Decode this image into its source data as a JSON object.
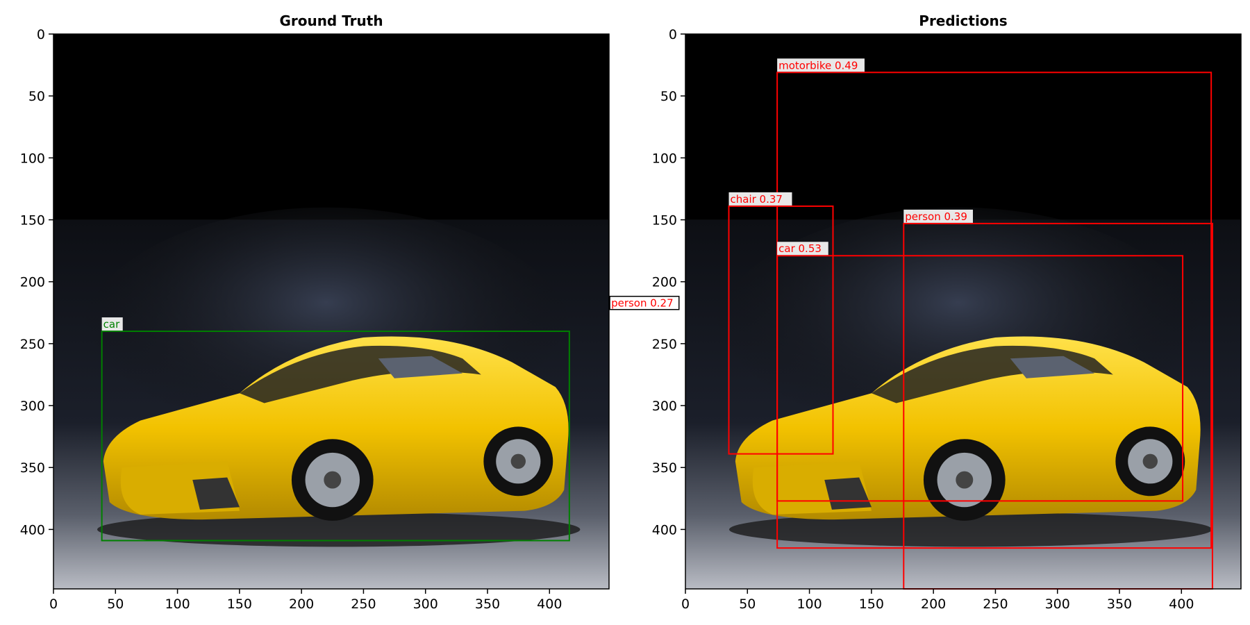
{
  "figure": {
    "image_description_colors": {
      "sky": "#000000",
      "car": "#f2c200",
      "gt_box": "#008000",
      "pred_box": "#ff0000"
    },
    "panels": [
      {
        "title": "Ground Truth",
        "x_ticks": [
          0,
          50,
          100,
          150,
          200,
          250,
          300,
          350,
          400
        ],
        "y_ticks": [
          0,
          50,
          100,
          150,
          200,
          250,
          300,
          350,
          400
        ],
        "xlim": [
          0,
          448
        ],
        "ylim": [
          448,
          0
        ],
        "boxes": [
          {
            "label": "car",
            "x1": 39,
            "y1": 240,
            "x2": 416,
            "y2": 409,
            "color": "#008000"
          }
        ]
      },
      {
        "title": "Predictions",
        "x_ticks": [
          0,
          50,
          100,
          150,
          200,
          250,
          300,
          350,
          400
        ],
        "y_ticks": [
          0,
          50,
          100,
          150,
          200,
          250,
          300,
          350,
          400
        ],
        "xlim": [
          0,
          448
        ],
        "ylim": [
          448,
          0
        ],
        "boxes": [
          {
            "label": "motorbike 0.49",
            "x1": 74,
            "y1": 31,
            "x2": 424,
            "y2": 415,
            "color": "#ff0000"
          },
          {
            "label": "chair 0.37",
            "x1": 35,
            "y1": 139,
            "x2": 119,
            "y2": 339,
            "color": "#ff0000"
          },
          {
            "label": "person 0.39",
            "x1": 176,
            "y1": 153,
            "x2": 425,
            "y2": 448,
            "color": "#ff0000"
          },
          {
            "label": "car 0.53",
            "x1": 74,
            "y1": 179,
            "x2": 401,
            "y2": 377,
            "color": "#ff0000"
          },
          {
            "label": "person 0.27",
            "x1": -61,
            "y1": 223,
            "x2": -61,
            "y2": 223,
            "color": "#ff0000",
            "offscreen": true
          }
        ]
      }
    ]
  }
}
